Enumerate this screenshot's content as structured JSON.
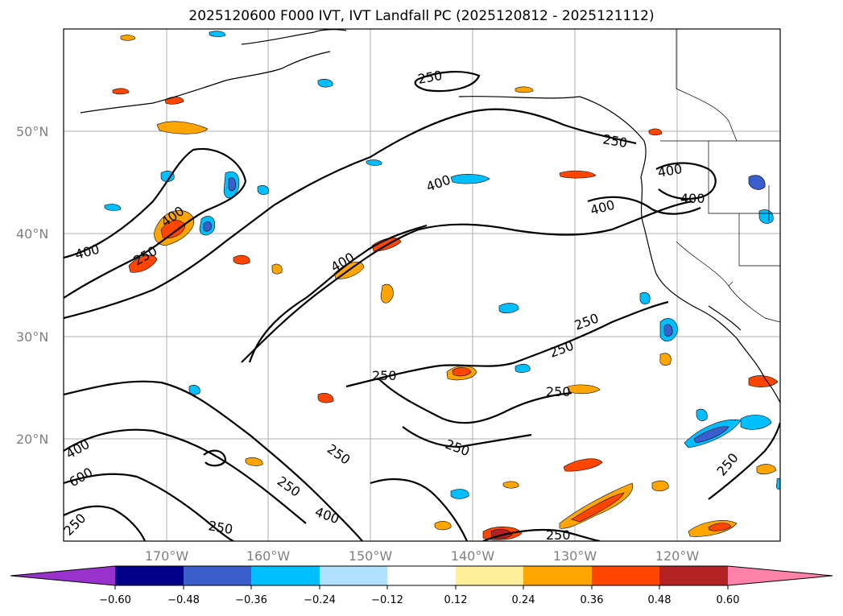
{
  "title": "2025120600 F000 IVT, IVT Landfall PC (2025120812 - 2025121112)",
  "lat_labels": [
    "50°N",
    "40°N",
    "30°N",
    "20°N"
  ],
  "lon_labels": [
    "170°W",
    "160°W",
    "150°W",
    "140°W",
    "130°W",
    "120°W"
  ],
  "contour_levels": [
    "250",
    "400",
    "600"
  ],
  "contour_labels": [
    "250",
    "400",
    "400",
    "400",
    "400",
    "250",
    "250",
    "250",
    "250",
    "400",
    "400",
    "600",
    "250",
    "250",
    "250",
    "250",
    "250",
    "400",
    "250",
    "250",
    "250",
    "250",
    "400",
    "250"
  ],
  "colorbar": {
    "ticks": [
      "−0.60",
      "−0.48",
      "−0.36",
      "−0.24",
      "−0.12",
      "0.12",
      "0.24",
      "0.36",
      "0.48",
      "0.60"
    ],
    "colors": [
      "#9932cc",
      "#00008b",
      "#3a5fcd",
      "#00bfff",
      "#b0e2ff",
      "#ffffff",
      "#ffee99",
      "#ffa500",
      "#ff4500",
      "#b22222",
      "#ff82ab"
    ]
  }
}
